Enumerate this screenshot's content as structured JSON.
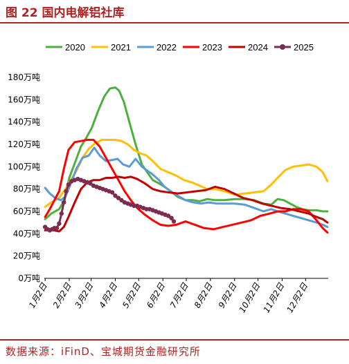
{
  "header": {
    "title": "图 22 国内电解铝社库"
  },
  "footer": {
    "source": "数据来源：iFinD、宝城期货金融研究所"
  },
  "chart_data": {
    "type": "line",
    "title": "",
    "xlabel": "",
    "ylabel": "",
    "unit": "万吨",
    "ylim": [
      0,
      180
    ],
    "yticks": [
      0,
      20,
      40,
      60,
      80,
      100,
      120,
      140,
      160,
      180
    ],
    "ytick_labels": [
      "0万吨",
      "20万吨",
      "40万吨",
      "60万吨",
      "80万吨",
      "100万吨",
      "120万吨",
      "140万吨",
      "160万吨",
      "180万吨"
    ],
    "x_is_day_of_year": true,
    "xlim": [
      1,
      365
    ],
    "xticks": [
      2,
      33,
      61,
      92,
      122,
      153,
      183,
      214,
      245,
      275,
      306,
      336
    ],
    "xtick_labels": [
      "1月2日",
      "2月2日",
      "3月2日",
      "4月2日",
      "5月2日",
      "6月2日",
      "7月2日",
      "8月2日",
      "9月2日",
      "10月2日",
      "11月2日",
      "12月2日"
    ],
    "grid": false,
    "legend_position": "top",
    "series": [
      {
        "name": "2020",
        "color": "#4caf3e",
        "x": [
          2,
          10,
          20,
          27,
          33,
          40,
          48,
          55,
          62,
          70,
          78,
          85,
          92,
          97,
          103,
          110,
          118,
          126,
          134,
          140,
          148,
          155,
          163,
          172,
          182,
          192,
          200,
          210,
          220,
          232,
          245,
          258,
          270,
          282,
          292,
          300,
          308,
          316,
          324,
          332,
          340,
          350,
          358,
          364
        ],
        "y": [
          53,
          58,
          62,
          70,
          90,
          103,
          118,
          126,
          135,
          150,
          163,
          170,
          171,
          168,
          158,
          140,
          120,
          102,
          94,
          88,
          85,
          82,
          78,
          73,
          70,
          70,
          69,
          71,
          70,
          70,
          71,
          71,
          70,
          67,
          66,
          71,
          70,
          67,
          64,
          62,
          61,
          61,
          60,
          60
        ]
      },
      {
        "name": "2021",
        "color": "#ffc000",
        "x": [
          2,
          10,
          20,
          28,
          35,
          42,
          50,
          58,
          66,
          75,
          84,
          92,
          100,
          108,
          116,
          124,
          132,
          140,
          150,
          160,
          170,
          180,
          190,
          200,
          210,
          220,
          232,
          245,
          258,
          270,
          282,
          292,
          300,
          310,
          320,
          330,
          340,
          350,
          358,
          364
        ],
        "y": [
          64,
          68,
          72,
          80,
          88,
          96,
          108,
          116,
          121,
          124,
          124,
          124,
          123,
          120,
          115,
          112,
          110,
          105,
          98,
          95,
          92,
          88,
          86,
          83,
          80,
          80,
          78,
          75,
          76,
          77,
          78,
          84,
          90,
          97,
          100,
          101,
          102,
          100,
          95,
          87
        ]
      },
      {
        "name": "2022",
        "color": "#5b9bd5",
        "x": [
          2,
          8,
          15,
          22,
          28,
          35,
          42,
          50,
          58,
          65,
          72,
          80,
          88,
          95,
          102,
          110,
          118,
          126,
          132,
          140,
          148,
          155,
          163,
          172,
          182,
          192,
          202,
          212,
          222,
          232,
          245,
          258,
          270,
          282,
          292,
          300,
          310,
          320,
          330,
          340,
          350,
          358,
          364
        ],
        "y": [
          81,
          76,
          72,
          70,
          73,
          85,
          98,
          108,
          110,
          117,
          110,
          105,
          106,
          107,
          102,
          100,
          107,
          100,
          97,
          93,
          88,
          82,
          78,
          74,
          70,
          68,
          67,
          68,
          67,
          67,
          67,
          66,
          63,
          60,
          62,
          60,
          58,
          56,
          54,
          52,
          50,
          48,
          46
        ]
      },
      {
        "name": "2023",
        "color": "#ff0000",
        "x": [
          2,
          8,
          14,
          20,
          26,
          32,
          40,
          48,
          56,
          64,
          72,
          80,
          88,
          96,
          104,
          112,
          120,
          130,
          140,
          150,
          160,
          170,
          182,
          194,
          206,
          218,
          230,
          242,
          254,
          266,
          278,
          290,
          300,
          310,
          320,
          330,
          340,
          350,
          358,
          364
        ],
        "y": [
          55,
          62,
          70,
          78,
          98,
          115,
          122,
          123,
          124,
          124,
          118,
          108,
          98,
          88,
          78,
          70,
          63,
          57,
          52,
          48,
          47,
          48,
          51,
          48,
          45,
          44,
          46,
          48,
          50,
          52,
          56,
          58,
          60,
          60,
          62,
          62,
          60,
          52,
          45,
          41
        ]
      },
      {
        "name": "2024",
        "color": "#c00000",
        "x": [
          2,
          8,
          14,
          20,
          26,
          32,
          40,
          48,
          56,
          64,
          72,
          80,
          88,
          96,
          104,
          112,
          120,
          130,
          140,
          150,
          160,
          172,
          184,
          196,
          208,
          220,
          232,
          244,
          256,
          268,
          280,
          292,
          304,
          316,
          328,
          340,
          350,
          358,
          364
        ],
        "y": [
          43,
          44,
          43,
          42,
          46,
          55,
          68,
          80,
          86,
          88,
          88,
          90,
          90,
          91,
          90,
          91,
          89,
          85,
          80,
          78,
          77,
          76,
          77,
          78,
          79,
          82,
          80,
          76,
          72,
          70,
          67,
          65,
          63,
          62,
          60,
          58,
          55,
          53,
          50
        ]
      },
      {
        "name": "2025",
        "color": "#7b2c4f",
        "x": [
          2,
          5,
          8,
          11,
          14,
          17,
          20,
          23,
          26,
          29,
          32,
          36,
          40,
          44,
          48,
          52,
          56,
          60,
          64,
          68,
          72,
          76,
          80,
          84,
          88,
          92,
          96,
          100,
          104,
          108,
          112,
          116,
          120,
          124,
          128,
          132,
          136,
          140,
          144,
          148,
          152,
          156,
          160,
          164,
          167
        ],
        "y": [
          46,
          44,
          43,
          44,
          45,
          45,
          49,
          58,
          68,
          78,
          84,
          87,
          88,
          89,
          88,
          87,
          86,
          85,
          83,
          82,
          81,
          80,
          79,
          78,
          77,
          74,
          72,
          70,
          68,
          67,
          66,
          65,
          65,
          64,
          63,
          62,
          62,
          61,
          60,
          59,
          58,
          57,
          56,
          54,
          51
        ]
      }
    ]
  }
}
